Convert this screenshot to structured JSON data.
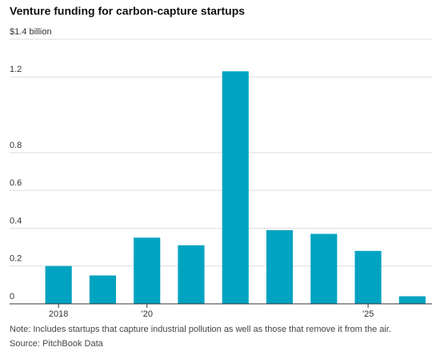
{
  "chart_data": {
    "type": "bar",
    "title": "Venture funding for carbon-capture startups",
    "categories": [
      "2018",
      null,
      "’20",
      null,
      null,
      null,
      null,
      "’25",
      null
    ],
    "values": [
      0.2,
      0.15,
      0.35,
      0.31,
      1.23,
      0.39,
      0.37,
      0.28,
      0.04
    ],
    "color": "#00a3c1",
    "ylim": [
      0,
      1.4
    ],
    "yticks": [
      0,
      0.2,
      0.4,
      0.6,
      0.8,
      1.2,
      {
        "value": 1.4,
        "label": "$1.4 billion"
      }
    ],
    "grid": true,
    "note": "Note: Includes startups that capture industrial pollution as well as those that remove it from the air.",
    "source": "Source: PitchBook Data"
  }
}
